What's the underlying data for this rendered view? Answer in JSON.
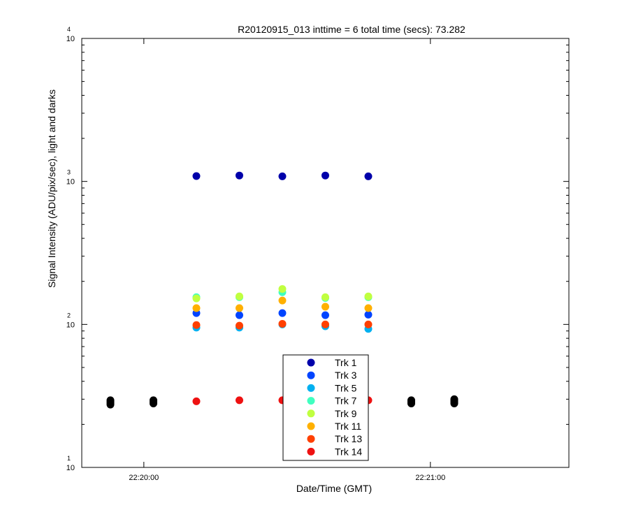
{
  "chart_data": {
    "type": "scatter",
    "title": "R20120915_013 inttime = 6 total time (secs): 73.282",
    "xlabel": "Date/Time (GMT)",
    "ylabel": "Signal Intensity (ADU/pix/sec), light and darks",
    "yscale": "log",
    "ylim": [
      10,
      10000
    ],
    "xlim": [
      "22:19:47",
      "22:21:29"
    ],
    "x_tick_labels": [
      "22:20:00",
      "22:21:00"
    ],
    "y_tick_labels": [
      {
        "base": "10",
        "exp": "1"
      },
      {
        "base": "10",
        "exp": "2"
      },
      {
        "base": "10",
        "exp": "3"
      },
      {
        "base": "10",
        "exp": "4"
      }
    ],
    "grid": false,
    "legend_position": "bottom-center",
    "light_times": [
      "22:20:11",
      "22:20:20",
      "22:20:29",
      "22:20:38",
      "22:20:47"
    ],
    "series": [
      {
        "name": "Trk 1",
        "color": "#0000aa",
        "values": [
          1090,
          1100,
          1085,
          1100,
          1085
        ]
      },
      {
        "name": "Trk 3",
        "color": "#0044ff",
        "values": [
          120,
          116,
          120,
          116,
          117
        ]
      },
      {
        "name": "Trk 5",
        "color": "#00b0f0",
        "values": [
          95,
          95,
          100,
          97,
          93
        ]
      },
      {
        "name": "Trk 7",
        "color": "#40ffc0",
        "values": [
          155,
          155,
          168,
          153,
          155
        ]
      },
      {
        "name": "Trk 9",
        "color": "#c0ff40",
        "values": [
          152,
          157,
          177,
          155,
          157
        ]
      },
      {
        "name": "Trk 11",
        "color": "#ffb000",
        "values": [
          130,
          130,
          147,
          133,
          130
        ]
      },
      {
        "name": "Trk 13",
        "color": "#ff4000",
        "values": [
          99,
          98,
          101,
          100,
          100
        ]
      },
      {
        "name": "Trk 14",
        "color": "#ee1111",
        "values": [
          29,
          29.5,
          29.5,
          29.5,
          29.5
        ]
      }
    ],
    "dark_frames": {
      "color": "#000000",
      "times": [
        "22:19:53",
        "22:20:02",
        "22:20:56",
        "22:21:05"
      ],
      "values_min": [
        27.5,
        28,
        28,
        28
      ],
      "values_max": [
        29.5,
        29.5,
        29.5,
        30
      ]
    }
  }
}
